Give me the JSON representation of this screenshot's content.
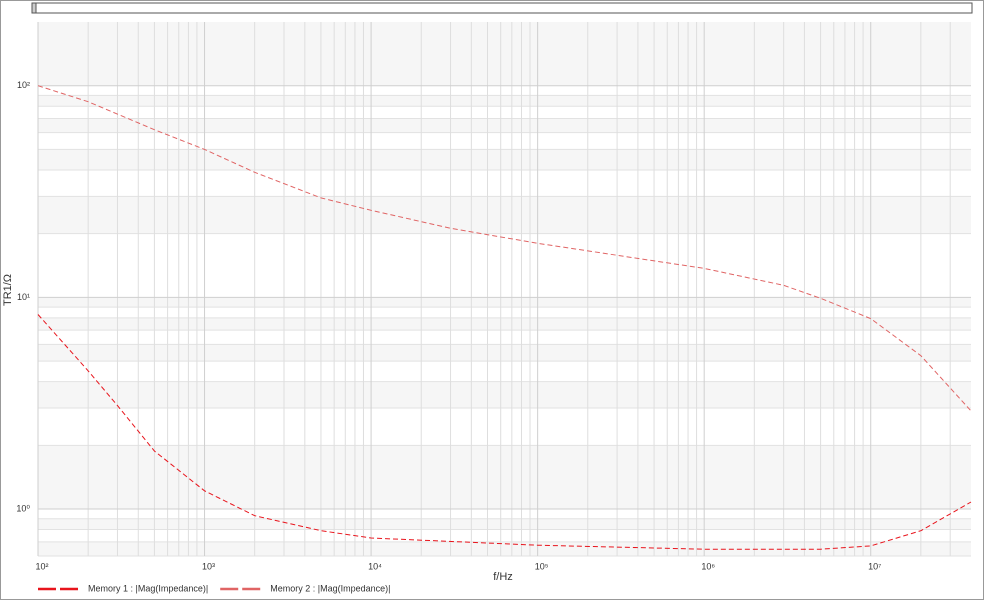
{
  "chart_data": {
    "type": "line",
    "x_label": "f/Hz",
    "y_label": "TR1/Ω",
    "xscale": "log",
    "yscale": "log",
    "grid": true,
    "legend": "bottom-left",
    "xlim": [
      100,
      40000000
    ],
    "ylim": [
      0.6,
      200
    ],
    "xticks": [
      {
        "value": 100,
        "label": "10²"
      },
      {
        "value": 1000,
        "label": "10³"
      },
      {
        "value": 10000,
        "label": "10⁴"
      },
      {
        "value": 100000,
        "label": "10⁵"
      },
      {
        "value": 1000000,
        "label": "10⁶"
      },
      {
        "value": 10000000,
        "label": "10⁷"
      }
    ],
    "yticks": [
      {
        "value": 1,
        "label": "10⁰"
      },
      {
        "value": 10,
        "label": "10¹"
      },
      {
        "value": 100,
        "label": "10²"
      }
    ],
    "series": [
      {
        "name": "Memory 1 : |Mag(Impedance)|",
        "color": "#e8141c",
        "x": [
          100,
          200,
          300,
          500,
          1000,
          2000,
          5000,
          10000,
          100000,
          1000000,
          5000000,
          10000000,
          20000000,
          40000000
        ],
        "values": [
          8.3,
          4.5,
          3.08,
          1.88,
          1.22,
          0.93,
          0.79,
          0.73,
          0.675,
          0.646,
          0.646,
          0.67,
          0.79,
          1.08
        ]
      },
      {
        "name": "Memory 2 : |Mag(Impedance)|",
        "color": "#e06464",
        "x": [
          100,
          200,
          500,
          1000,
          2000,
          5000,
          10000,
          30000,
          100000,
          1000000,
          3000000,
          5000000,
          10000000,
          20000000,
          40000000
        ],
        "values": [
          100,
          84,
          62,
          50,
          39,
          29.5,
          25.8,
          21.2,
          18,
          13.7,
          11.4,
          9.9,
          7.94,
          5.3,
          2.91
        ]
      }
    ]
  }
}
